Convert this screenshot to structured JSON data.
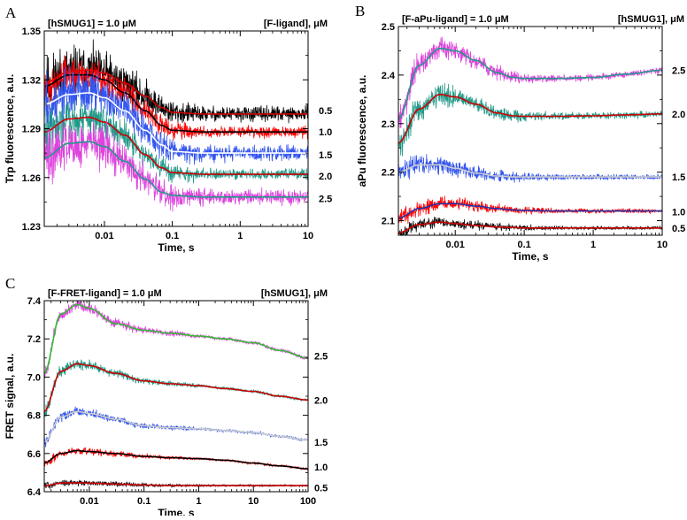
{
  "chart_data": [
    {
      "type": "line",
      "panel": "A",
      "title_left": "[hSMUG1] = 1.0 μM",
      "title_right": "[F-ligand], μM",
      "xlabel": "Time, s",
      "ylabel": "Trp fluorescence, a.u.",
      "xscale": "log",
      "xlim": [
        0.0013,
        10
      ],
      "ylim": [
        1.23,
        1.35
      ],
      "xticks": [
        0.01,
        0.1,
        1,
        10
      ],
      "xtick_labels": [
        "0.01",
        "0.1",
        "1",
        "10"
      ],
      "yticks": [
        1.23,
        1.26,
        1.29,
        1.32,
        1.35
      ],
      "ytick_labels": [
        "1.23",
        "1.26",
        "1.29",
        "1.32",
        "1.35"
      ],
      "series": [
        {
          "name": "0.5",
          "color": "#000000",
          "fit_color": "#cc0000",
          "noise": 0.004,
          "x": [
            0.0013,
            0.003,
            0.006,
            0.01,
            0.02,
            0.04,
            0.07,
            0.1,
            0.3,
            1,
            3,
            10
          ],
          "y": [
            1.318,
            1.325,
            1.326,
            1.324,
            1.318,
            1.31,
            1.303,
            1.3,
            1.299,
            1.299,
            1.299,
            1.299
          ]
        },
        {
          "name": "1.0",
          "color": "#ff0000",
          "fit_color": "#000000",
          "noise": 0.003,
          "x": [
            0.0013,
            0.003,
            0.006,
            0.01,
            0.02,
            0.04,
            0.07,
            0.1,
            0.3,
            1,
            3,
            10
          ],
          "y": [
            1.316,
            1.323,
            1.323,
            1.32,
            1.312,
            1.301,
            1.292,
            1.289,
            1.288,
            1.288,
            1.288,
            1.288
          ]
        },
        {
          "name": "1.5",
          "color": "#3355ee",
          "fit_color": "#ffffff",
          "noise": 0.004,
          "x": [
            0.0013,
            0.003,
            0.006,
            0.01,
            0.02,
            0.04,
            0.07,
            0.1,
            0.3,
            1,
            3,
            10
          ],
          "y": [
            1.305,
            1.311,
            1.312,
            1.309,
            1.301,
            1.289,
            1.28,
            1.276,
            1.275,
            1.275,
            1.275,
            1.275
          ]
        },
        {
          "name": "2.0",
          "color": "#229988",
          "fit_color": "#cc0000",
          "noise": 0.003,
          "x": [
            0.0013,
            0.003,
            0.006,
            0.01,
            0.02,
            0.04,
            0.07,
            0.1,
            0.3,
            1,
            3,
            10
          ],
          "y": [
            1.288,
            1.296,
            1.297,
            1.294,
            1.286,
            1.274,
            1.266,
            1.263,
            1.262,
            1.262,
            1.262,
            1.262
          ]
        },
        {
          "name": "2.5",
          "color": "#dd44dd",
          "fit_color": "#229988",
          "noise": 0.004,
          "x": [
            0.0013,
            0.003,
            0.006,
            0.01,
            0.02,
            0.04,
            0.07,
            0.1,
            0.3,
            1,
            3,
            10
          ],
          "y": [
            1.272,
            1.281,
            1.282,
            1.279,
            1.27,
            1.259,
            1.251,
            1.249,
            1.248,
            1.248,
            1.248,
            1.248
          ]
        }
      ],
      "right_labels": [
        "0.5",
        "1.0",
        "1.5",
        "2.0",
        "2.5"
      ],
      "right_label_values": [
        1.301,
        1.288,
        1.274,
        1.261,
        1.247
      ]
    },
    {
      "type": "line",
      "panel": "B",
      "title_left": "[F-aPu-ligand] = 1.0 μM",
      "title_right": "[hSMUG1], μM",
      "xlabel": "Time, s",
      "ylabel": "aPu fluorescence, a.u.",
      "xscale": "log",
      "xlim": [
        0.0015,
        10
      ],
      "ylim": [
        2.07,
        2.5
      ],
      "xticks": [
        0.01,
        0.1,
        1,
        10
      ],
      "xtick_labels": [
        "0.01",
        "0.1",
        "1",
        "10"
      ],
      "yticks": [
        2.1,
        2.2,
        2.3,
        2.4,
        2.5
      ],
      "ytick_labels": [
        "2.1",
        "2.2",
        "2.3",
        "2.4",
        "2.5"
      ],
      "series": [
        {
          "name": "2.5",
          "color": "#dd44dd",
          "fit_color": "#229988",
          "noise": 0.006,
          "x": [
            0.0015,
            0.003,
            0.006,
            0.01,
            0.02,
            0.04,
            0.07,
            0.1,
            0.3,
            1,
            3,
            10
          ],
          "y": [
            2.31,
            2.42,
            2.455,
            2.45,
            2.43,
            2.405,
            2.395,
            2.393,
            2.393,
            2.395,
            2.402,
            2.41
          ]
        },
        {
          "name": "2.0",
          "color": "#229988",
          "fit_color": "#cc0000",
          "noise": 0.006,
          "x": [
            0.0015,
            0.003,
            0.006,
            0.01,
            0.02,
            0.04,
            0.07,
            0.1,
            0.3,
            1,
            3,
            10
          ],
          "y": [
            2.26,
            2.33,
            2.36,
            2.355,
            2.34,
            2.322,
            2.316,
            2.315,
            2.315,
            2.316,
            2.318,
            2.32
          ]
        },
        {
          "name": "1.5",
          "color": "#3355ee",
          "fit_color": "#cccccc",
          "noise": 0.005,
          "x": [
            0.0015,
            0.003,
            0.006,
            0.01,
            0.02,
            0.04,
            0.07,
            0.1,
            0.3,
            1,
            3,
            10
          ],
          "y": [
            2.2,
            2.215,
            2.215,
            2.208,
            2.198,
            2.192,
            2.19,
            2.19,
            2.19,
            2.19,
            2.19,
            2.19
          ]
        },
        {
          "name": "1.0",
          "color": "#ff0000",
          "fit_color": "#2233aa",
          "noise": 0.004,
          "x": [
            0.0015,
            0.003,
            0.006,
            0.01,
            0.02,
            0.04,
            0.07,
            0.1,
            0.3,
            1,
            3,
            10
          ],
          "y": [
            2.105,
            2.125,
            2.135,
            2.135,
            2.13,
            2.125,
            2.122,
            2.121,
            2.12,
            2.12,
            2.12,
            2.12
          ]
        },
        {
          "name": "0.5",
          "color": "#111111",
          "fit_color": "#cc0000",
          "noise": 0.003,
          "x": [
            0.0015,
            0.003,
            0.006,
            0.01,
            0.02,
            0.04,
            0.07,
            0.1,
            0.3,
            1,
            3,
            10
          ],
          "y": [
            2.075,
            2.092,
            2.097,
            2.094,
            2.09,
            2.087,
            2.086,
            2.085,
            2.085,
            2.085,
            2.085,
            2.085
          ]
        }
      ],
      "right_labels": [
        "2.5",
        "2.0",
        "1.5",
        "1.0",
        "0.5"
      ],
      "right_label_values": [
        2.41,
        2.32,
        2.19,
        2.118,
        2.085
      ]
    },
    {
      "type": "line",
      "panel": "C",
      "title_left": "[F-FRET-ligand] = 1.0 μM",
      "title_right": "[hSMUG1], μM",
      "xlabel": "Time, s",
      "ylabel": "FRET signal, a.u.",
      "xscale": "log",
      "xlim": [
        0.0015,
        100
      ],
      "ylim": [
        6.4,
        7.4
      ],
      "xticks": [
        0.01,
        0.1,
        1,
        10,
        100
      ],
      "xtick_labels": [
        "0.01",
        "0.1",
        "1",
        "10",
        "100"
      ],
      "yticks": [
        6.4,
        6.6,
        6.8,
        7.0,
        7.2,
        7.4
      ],
      "ytick_labels": [
        "6.4",
        "6.6",
        "6.8",
        "7.0",
        "7.2",
        "7.4"
      ],
      "series": [
        {
          "name": "2.5",
          "color": "#dd44dd",
          "fit_color": "#33bb33",
          "noise": 0.008,
          "x": [
            0.0015,
            0.003,
            0.006,
            0.01,
            0.03,
            0.1,
            0.3,
            1,
            3,
            10,
            30,
            100
          ],
          "y": [
            7.02,
            7.33,
            7.38,
            7.36,
            7.28,
            7.245,
            7.23,
            7.215,
            7.2,
            7.18,
            7.14,
            7.1
          ]
        },
        {
          "name": "2.0",
          "color": "#229988",
          "fit_color": "#cc0000",
          "noise": 0.007,
          "x": [
            0.0015,
            0.003,
            0.006,
            0.01,
            0.03,
            0.1,
            0.3,
            1,
            3,
            10,
            30,
            100
          ],
          "y": [
            6.82,
            7.03,
            7.07,
            7.06,
            7.02,
            6.98,
            6.965,
            6.955,
            6.94,
            6.925,
            6.9,
            6.88
          ]
        },
        {
          "name": "1.5",
          "color": "#3355ee",
          "fit_color": "#cccccc",
          "noise": 0.006,
          "x": [
            0.0015,
            0.003,
            0.006,
            0.01,
            0.03,
            0.1,
            0.3,
            1,
            3,
            10,
            30,
            100
          ],
          "y": [
            6.66,
            6.79,
            6.82,
            6.81,
            6.78,
            6.745,
            6.735,
            6.73,
            6.72,
            6.71,
            6.69,
            6.67
          ]
        },
        {
          "name": "1.0",
          "color": "#ff0000",
          "fit_color": "#000000",
          "noise": 0.005,
          "x": [
            0.0015,
            0.003,
            0.006,
            0.01,
            0.03,
            0.1,
            0.3,
            1,
            3,
            10,
            30,
            100
          ],
          "y": [
            6.55,
            6.6,
            6.615,
            6.61,
            6.6,
            6.585,
            6.578,
            6.573,
            6.565,
            6.55,
            6.535,
            6.52
          ]
        },
        {
          "name": "0.5",
          "color": "#111111",
          "fit_color": "#cc0000",
          "noise": 0.004,
          "x": [
            0.0015,
            0.003,
            0.006,
            0.01,
            0.03,
            0.1,
            0.3,
            1,
            3,
            10,
            30,
            100
          ],
          "y": [
            6.43,
            6.445,
            6.447,
            6.445,
            6.44,
            6.435,
            6.432,
            6.432,
            6.432,
            6.432,
            6.432,
            6.432
          ]
        }
      ],
      "right_labels": [
        "2.5",
        "2.0",
        "1.5",
        "1.0",
        "0.5"
      ],
      "right_label_values": [
        7.11,
        6.88,
        6.66,
        6.53,
        6.42
      ]
    }
  ]
}
